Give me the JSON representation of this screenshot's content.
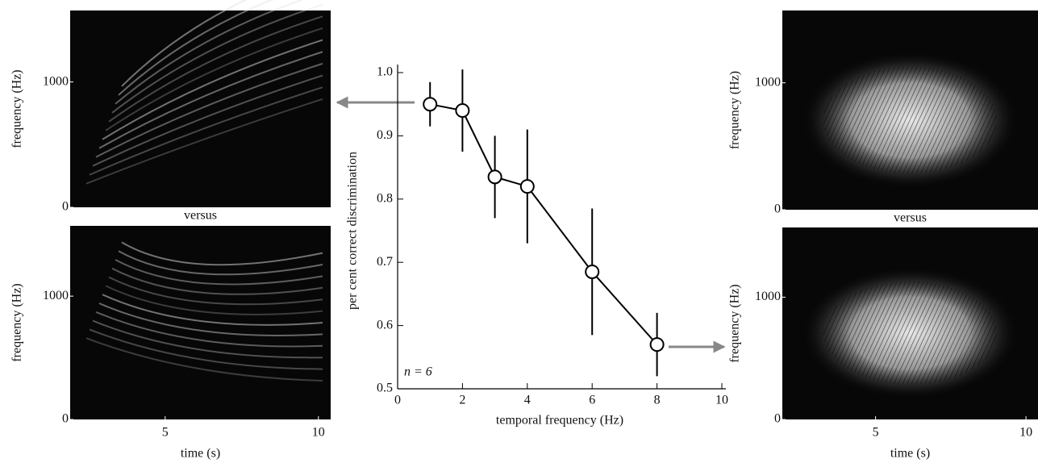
{
  "chart_data": {
    "type": "line",
    "xlabel": "temporal frequency (Hz)",
    "ylabel": "per cent correct discrimination",
    "annotation": "n = 6",
    "x": [
      1,
      2,
      3,
      4,
      6,
      8
    ],
    "series": [
      {
        "color": "#000000",
        "values": [
          0.95,
          0.94,
          0.835,
          0.82,
          0.685,
          0.57
        ],
        "errors": [
          0.035,
          0.065,
          0.065,
          0.09,
          0.1,
          0.05
        ]
      }
    ],
    "xlim": [
      0,
      10
    ],
    "xticks": [
      0,
      2,
      4,
      6,
      8,
      10
    ],
    "ylim": [
      0.5,
      1
    ],
    "yticks": [
      0.5,
      0.6,
      0.7,
      0.8,
      0.9,
      {
        "value": 1,
        "label": "1.0"
      }
    ]
  },
  "panels": [
    {
      "ylabel": "frequency (Hz)",
      "ylim": [
        0,
        1570
      ],
      "yticks": [
        0,
        1000
      ],
      "below_label": "versus"
    },
    {
      "ylabel": "frequency (Hz)",
      "ylim": [
        0,
        1570
      ],
      "yticks": [
        0,
        1000
      ],
      "xlim": [
        1.9,
        10.4
      ],
      "xticks": [
        5,
        10
      ],
      "xlabel": "time (s)"
    },
    {
      "ylabel": "frequency (Hz)",
      "ylim": [
        0,
        1570
      ],
      "yticks": [
        0,
        1000
      ],
      "below_label": "versus"
    },
    {
      "ylabel": "frequency (Hz)",
      "ylim": [
        0,
        1570
      ],
      "yticks": [
        0,
        1000
      ],
      "xlim": [
        1.9,
        10.4
      ],
      "xticks": [
        5,
        10
      ],
      "xlabel": "time (s)"
    }
  ]
}
